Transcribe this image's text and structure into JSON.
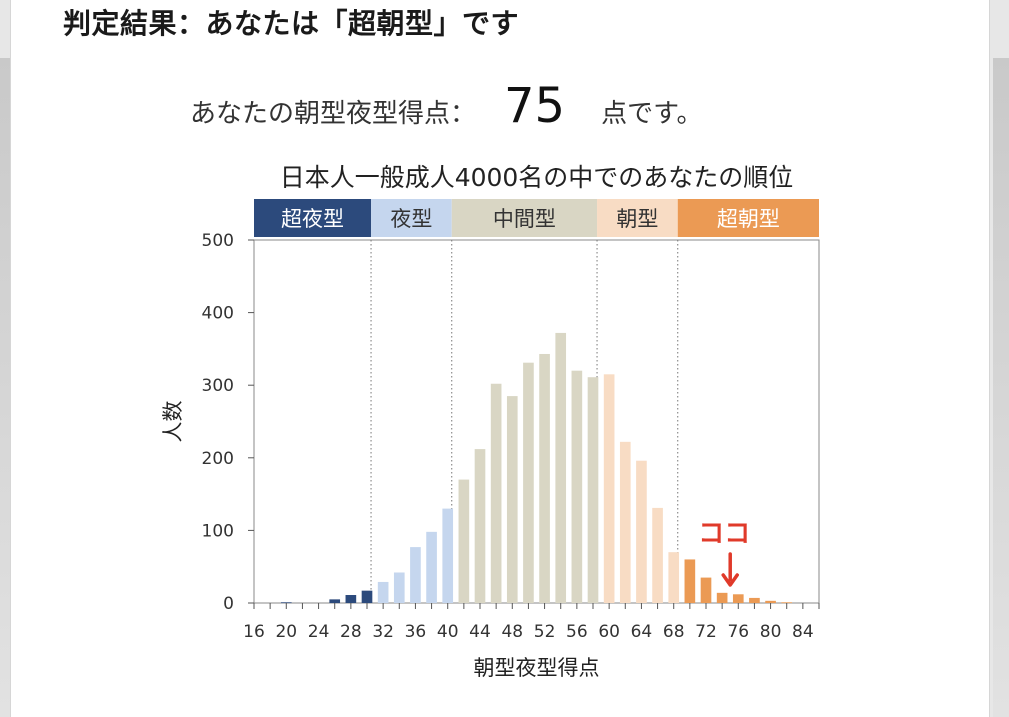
{
  "heading": "判定結果：あなたは「超朝型」です",
  "score": {
    "label": "あなたの朝型夜型得点：",
    "value": "75",
    "unit": "点です。"
  },
  "colors": {
    "super_night": "#2c4a7c",
    "night": "#c5d6ee",
    "middle": "#d9d6c4",
    "morning": "#f8dcc4",
    "super_morning": "#eb9a54",
    "marker": "#e03a2a"
  },
  "chart_data": {
    "type": "bar",
    "title": "日本人一般成人4000名の中でのあなたの順位",
    "xlabel": "朝型夜型得点",
    "ylabel": "人数",
    "ylim": [
      0,
      500
    ],
    "xlim": [
      16,
      86
    ],
    "y_ticks": [
      0,
      100,
      200,
      300,
      400,
      500
    ],
    "x_tick_labels": [
      "16",
      "20",
      "24",
      "28",
      "32",
      "36",
      "40",
      "44",
      "48",
      "52",
      "56",
      "60",
      "64",
      "68",
      "72",
      "76",
      "80",
      "84"
    ],
    "bands": [
      {
        "label": "超夜型",
        "from": 16,
        "to": 30.5,
        "color": "#2c4a7c",
        "text_color": "#ffffff"
      },
      {
        "label": "夜型",
        "from": 30.5,
        "to": 40.5,
        "color": "#c5d6ee",
        "text_color": "#333333"
      },
      {
        "label": "中間型",
        "from": 40.5,
        "to": 58.5,
        "color": "#d9d6c4",
        "text_color": "#333333"
      },
      {
        "label": "朝型",
        "from": 58.5,
        "to": 68.5,
        "color": "#f8dcc4",
        "text_color": "#333333"
      },
      {
        "label": "超朝型",
        "from": 68.5,
        "to": 86,
        "color": "#eb9a54",
        "text_color": "#ffffff"
      }
    ],
    "bars": [
      {
        "x": 20,
        "y": 1
      },
      {
        "x": 26,
        "y": 5
      },
      {
        "x": 28,
        "y": 11
      },
      {
        "x": 30,
        "y": 17
      },
      {
        "x": 32,
        "y": 29
      },
      {
        "x": 34,
        "y": 42
      },
      {
        "x": 36,
        "y": 77
      },
      {
        "x": 38,
        "y": 98
      },
      {
        "x": 40,
        "y": 130
      },
      {
        "x": 42,
        "y": 170
      },
      {
        "x": 44,
        "y": 212
      },
      {
        "x": 46,
        "y": 302
      },
      {
        "x": 48,
        "y": 285
      },
      {
        "x": 50,
        "y": 331
      },
      {
        "x": 52,
        "y": 343
      },
      {
        "x": 54,
        "y": 372
      },
      {
        "x": 56,
        "y": 320
      },
      {
        "x": 58,
        "y": 311
      },
      {
        "x": 60,
        "y": 315
      },
      {
        "x": 62,
        "y": 222
      },
      {
        "x": 64,
        "y": 196
      },
      {
        "x": 66,
        "y": 131
      },
      {
        "x": 68,
        "y": 70
      },
      {
        "x": 70,
        "y": 60
      },
      {
        "x": 72,
        "y": 35
      },
      {
        "x": 74,
        "y": 14
      },
      {
        "x": 76,
        "y": 12
      },
      {
        "x": 78,
        "y": 7
      },
      {
        "x": 80,
        "y": 3
      },
      {
        "x": 82,
        "y": 1
      }
    ],
    "dividers": [
      30.5,
      40.5,
      58.5,
      68.5
    ],
    "marker": {
      "x": 75,
      "label": "ココ"
    }
  }
}
